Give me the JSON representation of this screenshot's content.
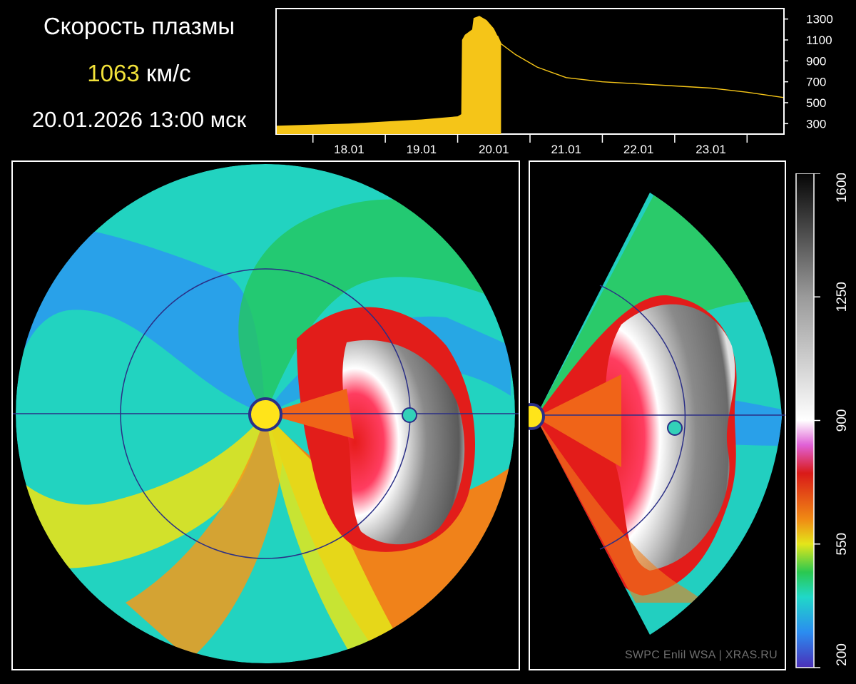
{
  "header": {
    "title": "Скорость плазмы",
    "speed_value": "1063",
    "speed_unit": "км/с",
    "datetime": "20.01.2026 13:00 мск"
  },
  "credits": {
    "text": "SWPC Enlil WSA  |  XRAS.RU"
  },
  "colors": {
    "series": "#f5c518",
    "panel_border": "#ffffff",
    "orbit": "#2b2f86",
    "sun_fill": "#ffe41a",
    "earth_fill": "#33d1b8"
  },
  "chart_data": [
    {
      "type": "area",
      "title": "",
      "xlabel": "",
      "ylabel": "",
      "x_ticks": [
        "18.01",
        "19.01",
        "20.01",
        "21.01",
        "22.01",
        "23.01"
      ],
      "y_ticks": [
        300,
        500,
        700,
        900,
        1100,
        1300
      ],
      "ylim": [
        200,
        1400
      ],
      "xlim": [
        17.0,
        24.0
      ],
      "current_time": 19.54,
      "series": [
        {
          "x": [
            17.0,
            17.5,
            18.0,
            18.5,
            19.0,
            19.5,
            19.55,
            19.56,
            19.6,
            19.7,
            19.72,
            19.8,
            19.9,
            20.0,
            20.05,
            20.1,
            20.3,
            20.6,
            21.0,
            21.5,
            22.0,
            22.5,
            23.0,
            23.5,
            24.0
          ],
          "values": [
            280,
            290,
            300,
            320,
            340,
            370,
            390,
            1100,
            1150,
            1200,
            1310,
            1330,
            1290,
            1210,
            1140,
            1063,
            960,
            840,
            740,
            700,
            680,
            660,
            640,
            600,
            550
          ]
        }
      ]
    },
    {
      "type": "heatmap",
      "title": "",
      "colorbar_ticks": [
        200,
        550,
        900,
        1250,
        1600
      ],
      "colorbar_range": [
        200,
        1600
      ],
      "colorbar_stops": [
        {
          "value": 200,
          "color": "#4b2fb8"
        },
        {
          "value": 300,
          "color": "#2b8cf0"
        },
        {
          "value": 400,
          "color": "#20d8c8"
        },
        {
          "value": 470,
          "color": "#2ac850"
        },
        {
          "value": 550,
          "color": "#e4e61a"
        },
        {
          "value": 620,
          "color": "#f08a14"
        },
        {
          "value": 750,
          "color": "#d91a18"
        },
        {
          "value": 830,
          "color": "#e060d6"
        },
        {
          "value": 900,
          "color": "#ffffff"
        },
        {
          "value": 1250,
          "color": "#9a9a9a"
        },
        {
          "value": 1600,
          "color": "#050505"
        }
      ]
    }
  ]
}
